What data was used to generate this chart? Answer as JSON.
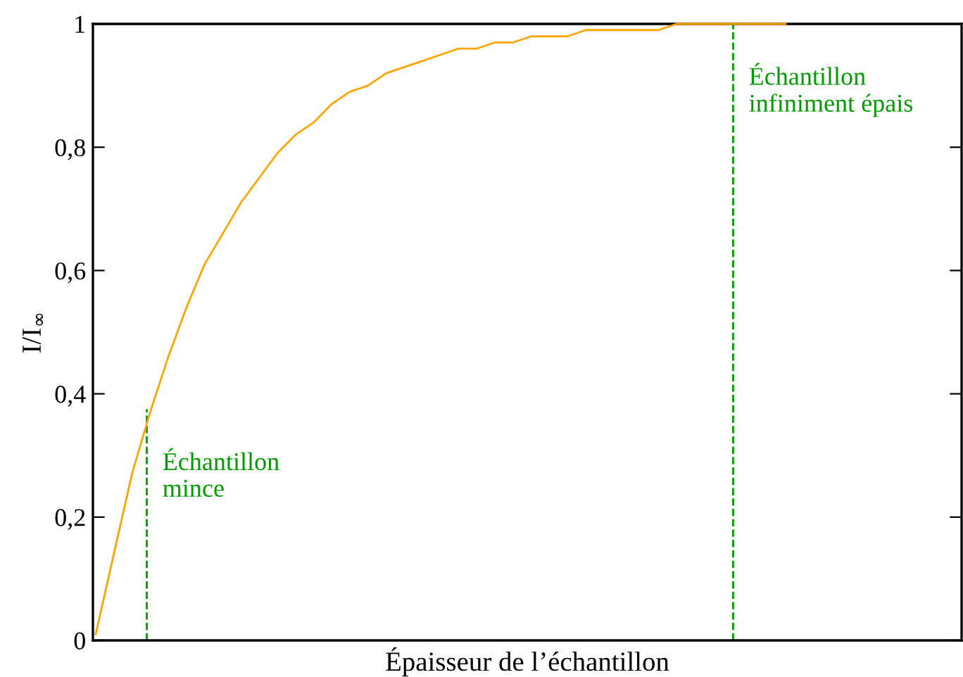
{
  "chart_data": {
    "type": "line",
    "xlabel": "Épaisseur de l’échantillon",
    "ylabel": "I/I$_{∞}$",
    "categories": [
      null,
      null,
      null,
      null,
      null,
      null,
      null,
      null,
      null,
      null,
      null,
      null,
      null,
      null,
      null,
      null,
      null,
      null,
      null,
      null,
      null,
      null,
      null,
      null,
      null,
      null,
      null,
      null,
      null,
      null,
      null,
      null,
      null,
      null,
      null,
      null,
      null,
      null,
      null,
      null,
      null,
      null,
      null,
      null,
      null,
      null,
      null,
      null
    ],
    "series": [
      {
        "color": "#ffa500",
        "values": [
          0.01,
          0.14,
          0.27,
          0.37,
          0.46,
          0.54,
          0.61,
          0.66,
          0.71,
          0.75,
          0.79,
          0.82,
          0.84,
          0.87,
          0.89,
          0.9,
          0.92,
          0.93,
          0.94,
          0.95,
          0.96,
          0.96,
          0.97,
          0.97,
          0.98,
          0.98,
          0.98,
          0.99,
          0.99,
          0.99,
          0.99,
          0.99,
          1,
          1,
          1,
          1,
          1,
          1,
          1,
          null,
          null,
          null,
          null,
          null,
          null,
          null,
          null,
          null
        ]
      }
    ],
    "ylim": [
      0,
      1
    ],
    "yticks": [
      0,
      {
        "value": 0.2,
        "label": "0,2"
      },
      {
        "value": 0.4,
        "label": "0,4"
      },
      {
        "value": 0.6,
        "label": "0,6"
      },
      {
        "value": 0.8,
        "label": "0,8"
      },
      1
    ],
    "annotations": [
      "Échantillon\nmince",
      "Échantillon\ninfiniment épais"
    ],
    "grid": false,
    "marker": "none",
    "line_style": "solid"
  }
}
